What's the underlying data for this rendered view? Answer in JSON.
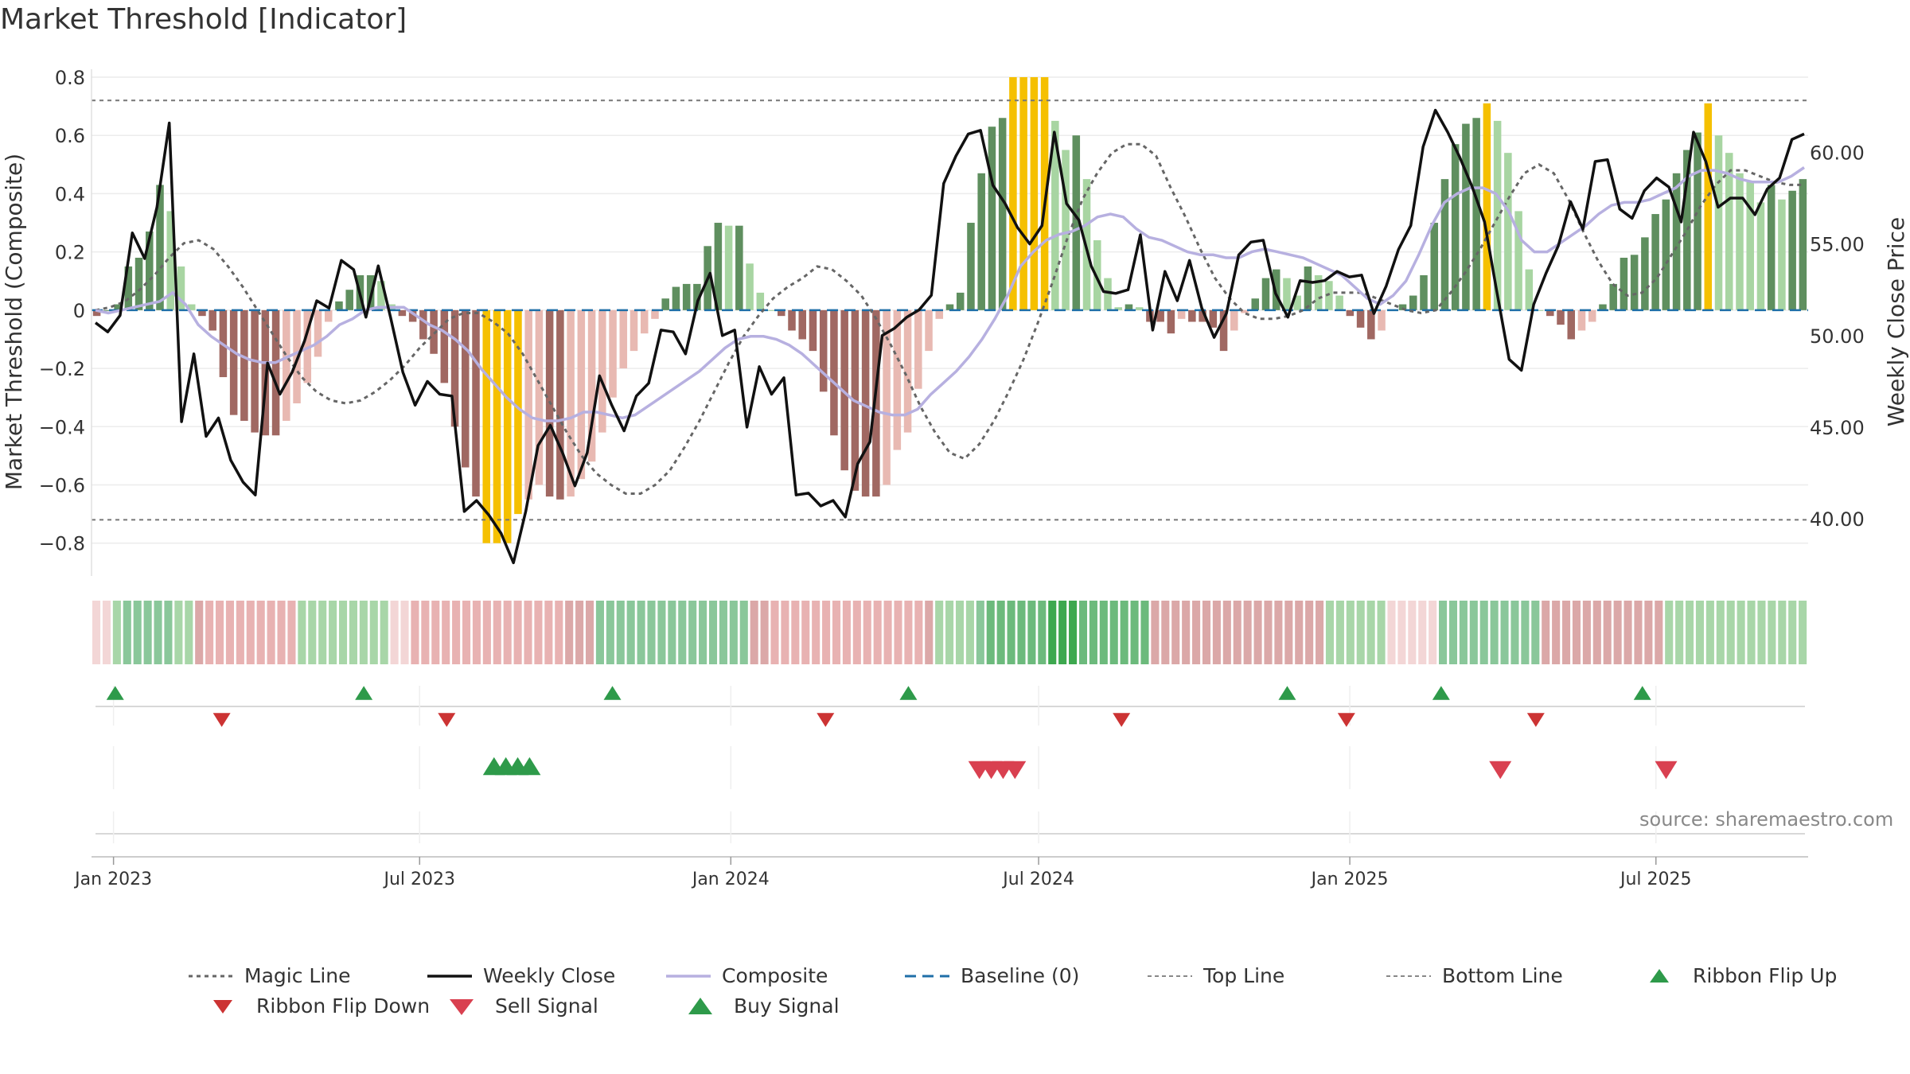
{
  "chart_title": "Market Threshold [Indicator]",
  "source": "source: sharemaestro.com",
  "colors": {
    "pos_strong": "#5f8f5f",
    "pos_light": "#a8d5a2",
    "neg_strong": "#a06862",
    "neg_light": "#e8b9b2",
    "extreme": "#f5c000",
    "close_line": "#111111",
    "composite_line": "#b7b0e0",
    "magic_line": "#666666",
    "baseline": "#1f6fa8",
    "flip_up": "#2e9a4a",
    "flip_down": "#cc3333",
    "sell": "#d94050",
    "buy": "#2e9a4a"
  },
  "legend": [
    {
      "key": "magic",
      "label": "Magic Line",
      "icon": "dotted-line-icon"
    },
    {
      "key": "close",
      "label": "Weekly Close",
      "icon": "solid-line-icon"
    },
    {
      "key": "composite",
      "label": "Composite",
      "icon": "solid-line-icon"
    },
    {
      "key": "baseline",
      "label": "Baseline (0)",
      "icon": "dashed-line-icon"
    },
    {
      "key": "top",
      "label": "Top Line",
      "icon": "dotted-line-icon"
    },
    {
      "key": "bottom",
      "label": "Bottom Line",
      "icon": "dotted-line-icon"
    },
    {
      "key": "flipup",
      "label": "Ribbon Flip Up",
      "icon": "triangle-up-icon"
    },
    {
      "key": "flipdown",
      "label": "Ribbon Flip Down",
      "icon": "triangle-down-icon"
    },
    {
      "key": "sell",
      "label": "Sell Signal",
      "icon": "triangle-down-icon"
    },
    {
      "key": "buy",
      "label": "Buy Signal",
      "icon": "triangle-up-icon"
    }
  ],
  "chart_data": {
    "type": "bar",
    "title": "Market Threshold [Indicator]",
    "ylabel": "Market Threshold (Composite)",
    "y2label": "Weekly Close Price",
    "ylim": [
      -0.88,
      0.8
    ],
    "y2lim": [
      37.4,
      64.1
    ],
    "yticks": [
      -0.8,
      -0.6,
      -0.4,
      -0.2,
      0,
      0.2,
      0.4,
      0.6,
      0.8
    ],
    "ytick_labels": [
      "−0.8",
      "−0.6",
      "−0.4",
      "−0.2",
      "0",
      "0.2",
      "0.4",
      "0.6",
      "0.8"
    ],
    "y2ticks": [
      40,
      45,
      50,
      55,
      60
    ],
    "y2tick_labels": [
      "40.00",
      "45.00",
      "50.00",
      "55.00",
      "60.00"
    ],
    "x_start": "2022-12-19",
    "x_end": "2025-09-29",
    "xticks": [
      "2023-01-01",
      "2023-07-01",
      "2024-01-01",
      "2024-07-01",
      "2025-01-01",
      "2025-07-01"
    ],
    "xtick_labels": [
      "Jan 2023",
      "Jul 2023",
      "Jan 2024",
      "Jul 2024",
      "Jan 2025",
      "Jul 2025"
    ],
    "top_line": 0.72,
    "bottom_line": -0.72,
    "grid": true,
    "legend_position": "bottom",
    "series": [
      {
        "name": "Composite (bars)",
        "values": [
          -0.02,
          0,
          0.02,
          0.15,
          0.18,
          0.27,
          0.43,
          0.34,
          0.15,
          0.02,
          -0.02,
          -0.07,
          -0.23,
          -0.36,
          -0.38,
          -0.42,
          -0.43,
          -0.43,
          -0.38,
          -0.32,
          -0.25,
          -0.16,
          -0.04,
          0.03,
          0.07,
          0.12,
          0.12,
          0.1,
          0.02,
          -0.02,
          -0.04,
          -0.1,
          -0.15,
          -0.25,
          -0.4,
          -0.54,
          -0.64,
          -0.8,
          -0.8,
          -0.8,
          -0.7,
          -0.65,
          -0.6,
          -0.64,
          -0.65,
          -0.64,
          -0.58,
          -0.52,
          -0.42,
          -0.3,
          -0.2,
          -0.14,
          -0.08,
          -0.03,
          0.04,
          0.08,
          0.09,
          0.09,
          0.22,
          0.3,
          0.29,
          0.29,
          0.16,
          0.06,
          0,
          -0.02,
          -0.07,
          -0.1,
          -0.14,
          -0.28,
          -0.43,
          -0.55,
          -0.62,
          -0.64,
          -0.64,
          -0.6,
          -0.48,
          -0.42,
          -0.27,
          -0.14,
          -0.03,
          0.02,
          0.06,
          0.3,
          0.47,
          0.63,
          0.66,
          0.8,
          0.8,
          0.8,
          0.8,
          0.65,
          0.55,
          0.6,
          0.45,
          0.24,
          0.11,
          0.01,
          0.02,
          0.01,
          -0.04,
          -0.04,
          -0.08,
          -0.03,
          -0.04,
          -0.04,
          -0.06,
          -0.14,
          -0.07,
          -0.01,
          0.04,
          0.11,
          0.14,
          0.11,
          0.05,
          0.15,
          0.12,
          0.1,
          0.05,
          -0.02,
          -0.06,
          -0.1,
          -0.07,
          0,
          0.02,
          0.05,
          0.12,
          0.3,
          0.45,
          0.57,
          0.64,
          0.66,
          0.71,
          0.65,
          0.54,
          0.34,
          0.14,
          0,
          -0.02,
          -0.05,
          -0.1,
          -0.07,
          -0.04,
          0.02,
          0.09,
          0.18,
          0.19,
          0.25,
          0.33,
          0.38,
          0.47,
          0.55,
          0.61,
          0.71,
          0.6,
          0.54,
          0.47,
          0.44,
          0.37,
          0.43,
          0.38,
          0.41,
          0.45
        ]
      },
      {
        "name": "Weekly Close",
        "values": [
          50.7,
          50.2,
          51.1,
          55.6,
          54.2,
          57.0,
          61.6,
          45.3,
          49.0,
          44.5,
          45.5,
          43.2,
          42.0,
          41.3,
          48.5,
          46.8,
          48.0,
          49.7,
          51.9,
          51.5,
          54.1,
          53.6,
          51.0,
          53.8,
          51.0,
          48.0,
          46.2,
          47.5,
          46.8,
          46.7,
          40.4,
          41.0,
          40.2,
          39.2,
          37.6,
          40.4,
          44.0,
          45.1,
          43.6,
          41.8,
          43.6,
          47.8,
          46.2,
          44.8,
          46.7,
          47.4,
          50.3,
          50.2,
          49.0,
          51.9,
          53.4,
          50.0,
          50.3,
          45.0,
          48.3,
          46.8,
          47.7,
          41.3,
          41.4,
          40.7,
          41.0,
          40.1,
          43.0,
          44.2,
          50.0,
          50.4,
          51.0,
          51.4,
          52.2,
          58.3,
          59.8,
          61.0,
          61.2,
          58.2,
          57.2,
          55.9,
          55.0,
          56.0,
          61.1,
          57.2,
          56.3,
          53.8,
          52.4,
          52.3,
          52.5,
          55.5,
          50.3,
          53.5,
          51.9,
          54.1,
          51.5,
          49.9,
          51.2,
          54.4,
          55.1,
          55.2,
          52.3,
          51.0,
          53.0,
          52.9,
          53.0,
          53.5,
          53.2,
          53.3,
          51.2,
          52.7,
          54.7,
          56.0,
          60.3,
          62.3,
          61.1,
          59.7,
          58.1,
          56.2,
          52.4,
          48.7,
          48.1,
          51.7,
          53.4,
          54.9,
          57.3,
          55.8,
          59.5,
          59.6,
          56.9,
          56.4,
          57.9,
          58.6,
          58.1,
          56.2,
          61.1,
          59.5,
          57.0,
          57.5,
          57.5,
          56.6,
          58.0,
          58.6,
          60.7,
          61.0
        ]
      },
      {
        "name": "Composite",
        "values": [
          0,
          -0.01,
          0,
          0.01,
          0.02,
          0.03,
          0.06,
          0.02,
          -0.05,
          -0.09,
          -0.12,
          -0.15,
          -0.17,
          -0.18,
          -0.18,
          -0.16,
          -0.14,
          -0.12,
          -0.09,
          -0.05,
          -0.03,
          0,
          0.01,
          0.01,
          0.01,
          -0.02,
          -0.05,
          -0.07,
          -0.1,
          -0.14,
          -0.2,
          -0.25,
          -0.3,
          -0.34,
          -0.37,
          -0.38,
          -0.38,
          -0.37,
          -0.35,
          -0.35,
          -0.36,
          -0.37,
          -0.36,
          -0.33,
          -0.3,
          -0.27,
          -0.24,
          -0.21,
          -0.17,
          -0.13,
          -0.1,
          -0.09,
          -0.09,
          -0.1,
          -0.12,
          -0.15,
          -0.19,
          -0.23,
          -0.27,
          -0.31,
          -0.33,
          -0.35,
          -0.36,
          -0.36,
          -0.34,
          -0.29,
          -0.25,
          -0.21,
          -0.16,
          -0.1,
          -0.03,
          0.05,
          0.15,
          0.2,
          0.24,
          0.26,
          0.27,
          0.29,
          0.32,
          0.33,
          0.32,
          0.28,
          0.25,
          0.24,
          0.22,
          0.2,
          0.19,
          0.19,
          0.18,
          0.18,
          0.2,
          0.21,
          0.2,
          0.19,
          0.18,
          0.16,
          0.14,
          0.12,
          0.08,
          0.04,
          0.02,
          0.05,
          0.1,
          0.19,
          0.29,
          0.37,
          0.4,
          0.42,
          0.42,
          0.4,
          0.34,
          0.24,
          0.2,
          0.2,
          0.23,
          0.26,
          0.29,
          0.33,
          0.36,
          0.37,
          0.37,
          0.38,
          0.4,
          0.42,
          0.46,
          0.48,
          0.48,
          0.47,
          0.45,
          0.44,
          0.44,
          0.44,
          0.46,
          0.49
        ]
      },
      {
        "name": "Magic Line",
        "values": [
          0,
          0.01,
          0.03,
          0.07,
          0.12,
          0.18,
          0.23,
          0.24,
          0.21,
          0.15,
          0.08,
          0,
          -0.08,
          -0.16,
          -0.23,
          -0.28,
          -0.31,
          -0.32,
          -0.31,
          -0.28,
          -0.24,
          -0.19,
          -0.13,
          -0.08,
          -0.03,
          -0.01,
          -0.01,
          -0.04,
          -0.08,
          -0.15,
          -0.24,
          -0.33,
          -0.42,
          -0.5,
          -0.56,
          -0.6,
          -0.63,
          -0.63,
          -0.6,
          -0.55,
          -0.47,
          -0.38,
          -0.28,
          -0.18,
          -0.09,
          -0.02,
          0.04,
          0.08,
          0.11,
          0.15,
          0.14,
          0.1,
          0.05,
          -0.03,
          -0.12,
          -0.22,
          -0.33,
          -0.42,
          -0.49,
          -0.51,
          -0.46,
          -0.38,
          -0.28,
          -0.17,
          -0.04,
          0.1,
          0.25,
          0.38,
          0.47,
          0.54,
          0.57,
          0.57,
          0.53,
          0.42,
          0.32,
          0.21,
          0.11,
          0.04,
          -0.01,
          -0.03,
          -0.03,
          -0.02,
          0,
          0.04,
          0.06,
          0.06,
          0.06,
          0.04,
          0.02,
          0,
          -0.01,
          0,
          0.06,
          0.13,
          0.21,
          0.3,
          0.39,
          0.47,
          0.5,
          0.47,
          0.38,
          0.27,
          0.17,
          0.09,
          0.05,
          0.06,
          0.11,
          0.19,
          0.27,
          0.36,
          0.43,
          0.48,
          0.48,
          0.46,
          0.44,
          0.43,
          0.43
        ]
      }
    ],
    "ribbon_color_index": [
      1,
      1,
      4,
      5,
      5,
      5,
      5,
      5,
      4,
      4,
      3,
      2,
      2,
      2,
      2,
      2,
      2,
      2,
      2,
      2,
      4,
      4,
      4,
      4,
      4,
      4,
      4,
      4,
      4,
      1,
      1,
      2,
      2,
      2,
      2,
      2,
      2,
      2,
      2,
      2,
      2,
      2,
      2,
      2,
      2,
      2,
      3,
      3,
      3,
      5,
      5,
      5,
      5,
      5,
      5,
      5,
      5,
      5,
      5,
      5,
      5,
      5,
      5,
      5,
      3,
      3,
      2,
      2,
      2,
      2,
      2,
      2,
      2,
      2,
      2,
      2,
      2,
      2,
      2,
      2,
      2,
      3,
      4,
      4,
      4,
      4,
      5,
      6,
      6,
      6,
      6,
      6,
      6,
      7,
      7,
      7,
      6,
      6,
      6,
      6,
      6,
      6,
      6,
      3,
      3,
      3,
      3,
      3,
      3,
      3,
      3,
      3,
      3,
      3,
      3,
      3,
      3,
      3,
      3,
      3,
      4,
      4,
      4,
      4,
      4,
      4,
      1,
      1,
      1,
      1,
      1,
      5,
      5,
      5,
      5,
      5,
      5,
      5,
      5,
      5,
      5,
      3,
      3,
      3,
      3,
      3,
      3,
      3,
      3,
      3,
      3,
      3,
      3,
      4,
      4,
      4,
      4,
      4,
      4,
      4,
      4,
      4,
      4,
      4,
      4,
      4,
      4
    ],
    "ribbon_palette": [
      "#f7dede",
      "#f3d6d6",
      "#e8b2b2",
      "#dba8a8",
      "#a8d6a8",
      "#8ac79a",
      "#6cba7c",
      "#3da84f"
    ],
    "ribbon_flip_up_dates": [
      "2023-01-02",
      "2023-05-29",
      "2023-10-23",
      "2024-04-15",
      "2024-11-25",
      "2025-02-24",
      "2025-06-23"
    ],
    "ribbon_flip_down_dates": [
      "2023-03-06",
      "2023-07-17",
      "2024-02-26",
      "2024-08-19",
      "2024-12-30",
      "2025-04-21"
    ],
    "buy_signal_dates": [
      "2023-08-14",
      "2023-08-21",
      "2023-08-28",
      "2023-09-04"
    ],
    "sell_signal_dates": [
      "2024-05-27",
      "2024-06-03",
      "2024-06-10",
      "2024-06-17",
      "2025-03-31",
      "2025-07-07"
    ],
    "extreme_threshold": 0.7
  }
}
